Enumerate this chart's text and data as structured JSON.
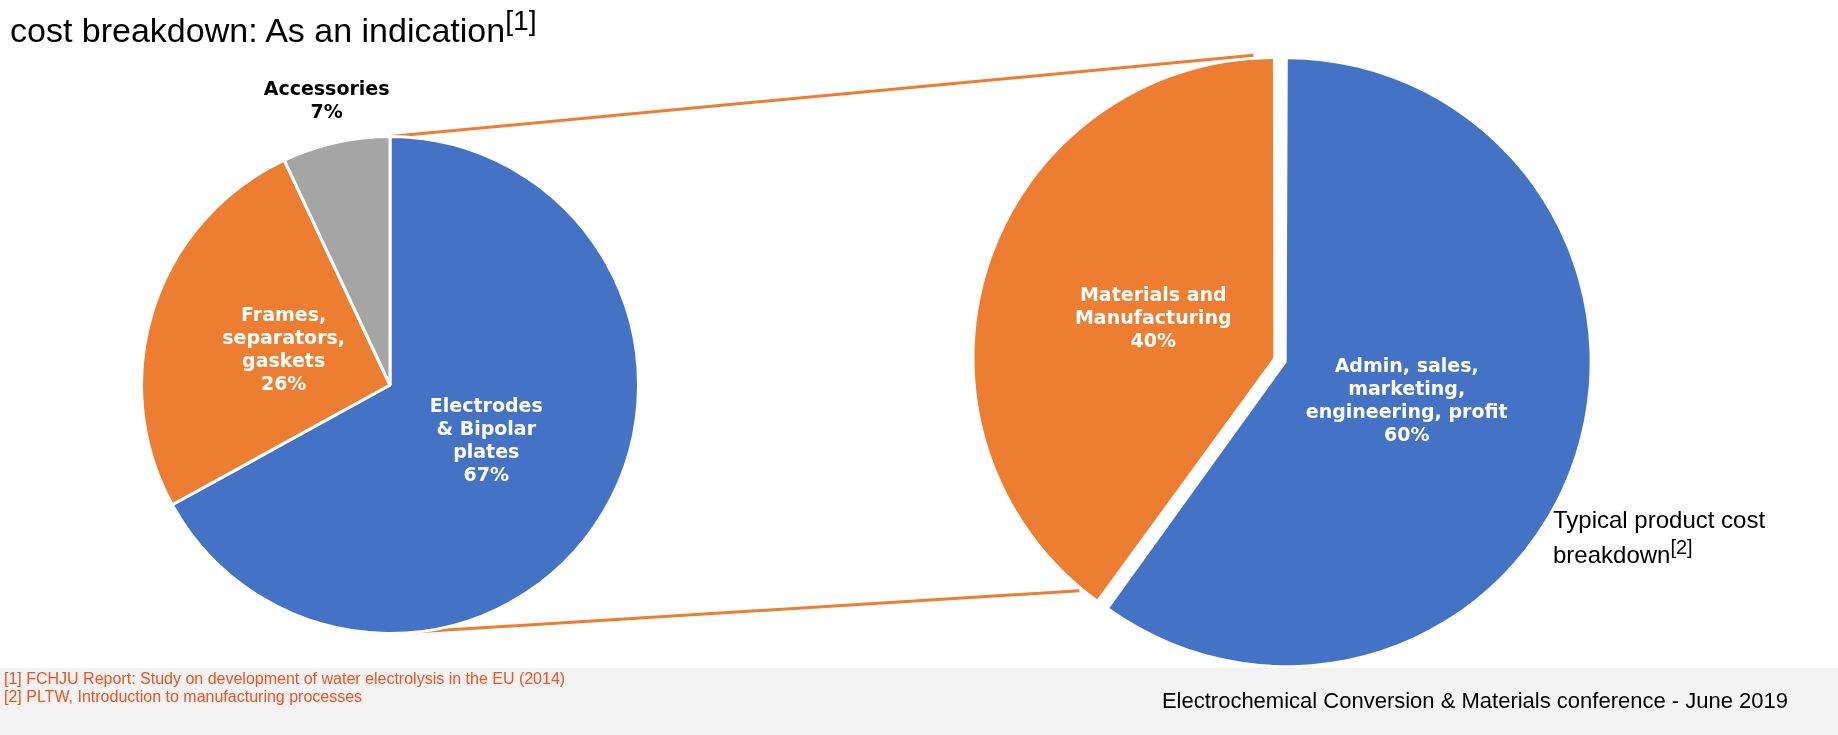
{
  "chart_data": [
    {
      "type": "pie",
      "title": "cost breakdown: As an indication$^{[1]}$",
      "categories": [
        "Electrodes & Bipolar plates",
        "Frames, separators, gaskets",
        "Accessories"
      ],
      "values": [
        67,
        26,
        7
      ],
      "colors": [
        "#4472c4",
        "#ed7d31",
        "#a5a5a5"
      ],
      "value_labels": [
        "67%",
        "26%",
        "7%"
      ],
      "legend": false,
      "annotations": [
        "[1] FCHJU Report: Study on development of water electrolysis in the EU (2014)",
        "[2] PLTW, Introduction to manufacturing processes",
        "Electrochemical Conversion & Materials conference - June 2019"
      ]
    },
    {
      "type": "pie",
      "categories": [
        "Admin, sales, marketing, engineering, profit",
        "Materials and Manufacturing"
      ],
      "values": [
        60,
        40
      ],
      "colors": [
        "#4472c4",
        "#ed7d31"
      ],
      "value_labels": [
        "60%",
        "40%"
      ],
      "legend": false,
      "annotations": [
        "Typical product cost breakdown$^{[2]}$"
      ]
    }
  ]
}
